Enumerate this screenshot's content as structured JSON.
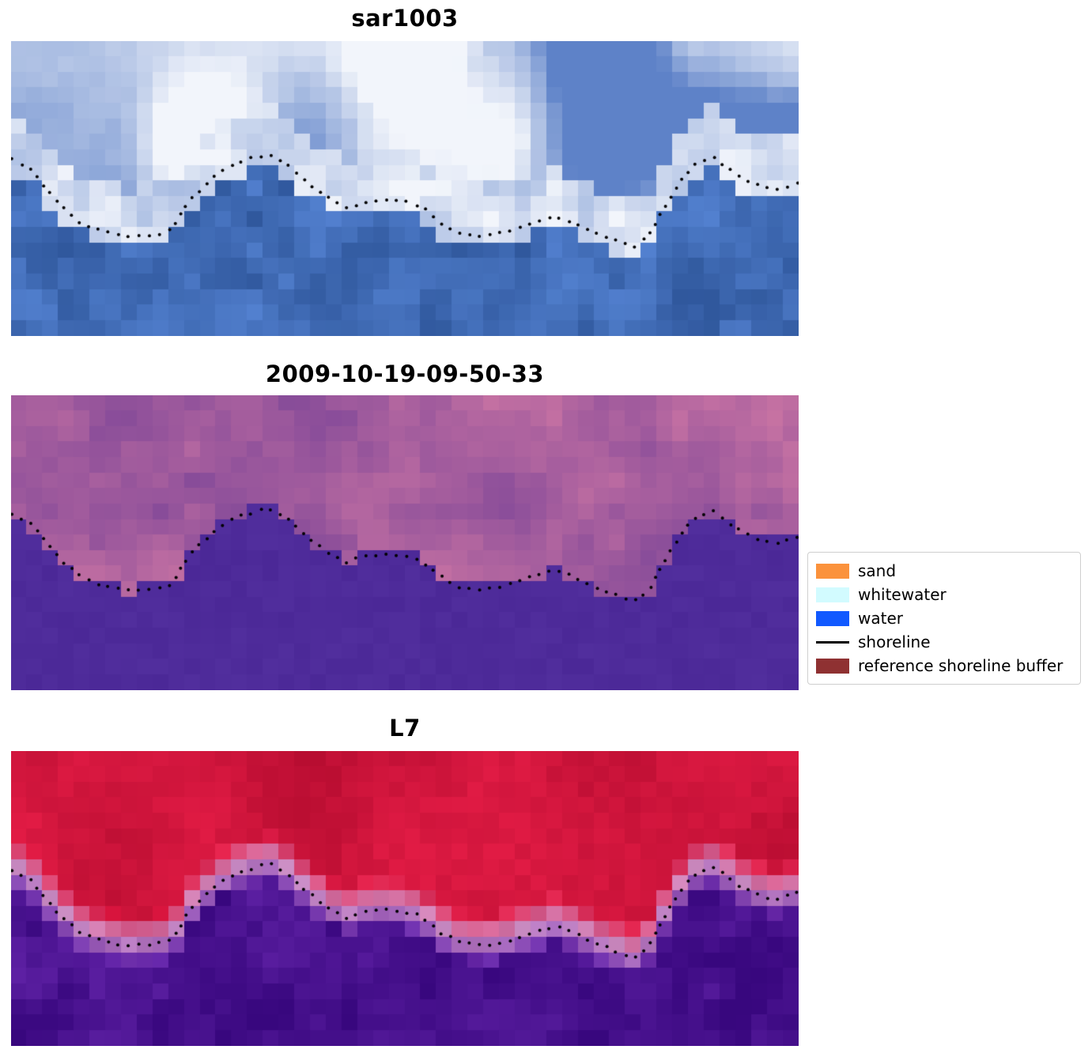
{
  "figure": {
    "background": "#ffffff",
    "panels": [
      {
        "title": "sar1003"
      },
      {
        "title": "2009-10-19-09-50-33"
      },
      {
        "title": "L7"
      }
    ]
  },
  "legend": {
    "items": [
      {
        "label": "sand",
        "color": "#fb923c",
        "type": "patch"
      },
      {
        "label": "whitewater",
        "color": "#d2fbff",
        "type": "patch"
      },
      {
        "label": "water",
        "color": "#1159ff",
        "type": "patch"
      },
      {
        "label": "shoreline",
        "color": "#000000",
        "type": "line"
      },
      {
        "label": "reference shoreline buffer",
        "color": "#8f3132",
        "type": "patch"
      }
    ]
  },
  "chart_data": {
    "type": "heatmap",
    "title": "",
    "description": "Three co-registered coastal image panels (SAR RGB, classified output, L7) with detected shoreline plotted as black dots",
    "grid": {
      "cols": 50,
      "rows": 19
    },
    "dot_spacing_px": 13,
    "dot_radius_px": 2,
    "shoreline": [
      [
        0.0,
        0.4
      ],
      [
        0.025,
        0.435
      ],
      [
        0.055,
        0.535
      ],
      [
        0.085,
        0.61
      ],
      [
        0.115,
        0.645
      ],
      [
        0.15,
        0.66
      ],
      [
        0.185,
        0.655
      ],
      [
        0.205,
        0.64
      ],
      [
        0.225,
        0.545
      ],
      [
        0.255,
        0.465
      ],
      [
        0.285,
        0.415
      ],
      [
        0.315,
        0.39
      ],
      [
        0.33,
        0.385
      ],
      [
        0.35,
        0.415
      ],
      [
        0.375,
        0.475
      ],
      [
        0.4,
        0.53
      ],
      [
        0.425,
        0.565
      ],
      [
        0.45,
        0.545
      ],
      [
        0.475,
        0.538
      ],
      [
        0.5,
        0.545
      ],
      [
        0.52,
        0.56
      ],
      [
        0.545,
        0.615
      ],
      [
        0.57,
        0.65
      ],
      [
        0.6,
        0.66
      ],
      [
        0.63,
        0.645
      ],
      [
        0.66,
        0.615
      ],
      [
        0.69,
        0.595
      ],
      [
        0.715,
        0.615
      ],
      [
        0.74,
        0.65
      ],
      [
        0.765,
        0.675
      ],
      [
        0.79,
        0.7
      ],
      [
        0.81,
        0.66
      ],
      [
        0.83,
        0.56
      ],
      [
        0.855,
        0.455
      ],
      [
        0.875,
        0.405
      ],
      [
        0.893,
        0.395
      ],
      [
        0.91,
        0.43
      ],
      [
        0.93,
        0.465
      ],
      [
        0.955,
        0.495
      ],
      [
        0.975,
        0.5
      ],
      [
        1.0,
        0.48
      ]
    ],
    "panels": [
      {
        "title": "sar1003",
        "style": "sar_rgb",
        "seed": 11,
        "palette": {
          "water_dark": "#30589d",
          "water_light": "#5280cf",
          "cloud_blue": "#5e82c8",
          "cloud_white": "#f2f5fb"
        }
      },
      {
        "title": "2009-10-19-09-50-33",
        "style": "classified",
        "seed": 22,
        "palette": {
          "solid": "#4e2b9a",
          "mix_purple": "#7f4798",
          "mix_pink": "#ca74a3"
        }
      },
      {
        "title": "L7",
        "style": "classified_l7",
        "seed": 33,
        "palette": {
          "red_dark": "#b80d31",
          "red_light": "#e11b44",
          "pink": "#cd8fc5",
          "purple_light": "#6223a8",
          "purple_dark": "#38077e"
        }
      }
    ]
  }
}
